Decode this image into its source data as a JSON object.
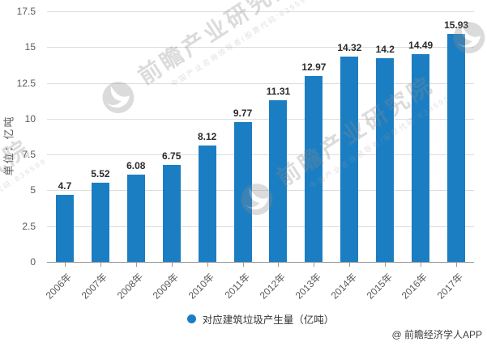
{
  "chart_data": {
    "type": "bar",
    "categories": [
      "2006年",
      "2007年",
      "2008年",
      "2009年",
      "2010年",
      "2011年",
      "2012年",
      "2013年",
      "2014年",
      "2015年",
      "2016年",
      "2017年"
    ],
    "values": [
      4.7,
      5.52,
      6.08,
      6.75,
      8.12,
      9.77,
      11.31,
      12.97,
      14.32,
      14.2,
      14.49,
      15.93
    ],
    "ylabel": "单位：亿吨",
    "ylim": [
      0,
      17.5
    ],
    "yticks": [
      17.5,
      15,
      12.5,
      10,
      7.5,
      5,
      2.5,
      0
    ],
    "grid": true,
    "legend_label": "对应建筑垃圾产生量（亿吨）",
    "legend_position": "bottom",
    "bar_color": "#1b7ec3"
  },
  "watermark": {
    "brand": "前瞻产业研究院",
    "tagline": "中国产业咨询领导者/股票代码:839599"
  },
  "attribution": "@ 前瞻经济学人APP",
  "colors": {
    "bar": "#1b7ec3",
    "value_label": "#2b2b2b",
    "axis_label": "#595959",
    "gridline": "#dcdcdc",
    "axis_line": "#999999",
    "watermark": "#8c8c8c"
  }
}
